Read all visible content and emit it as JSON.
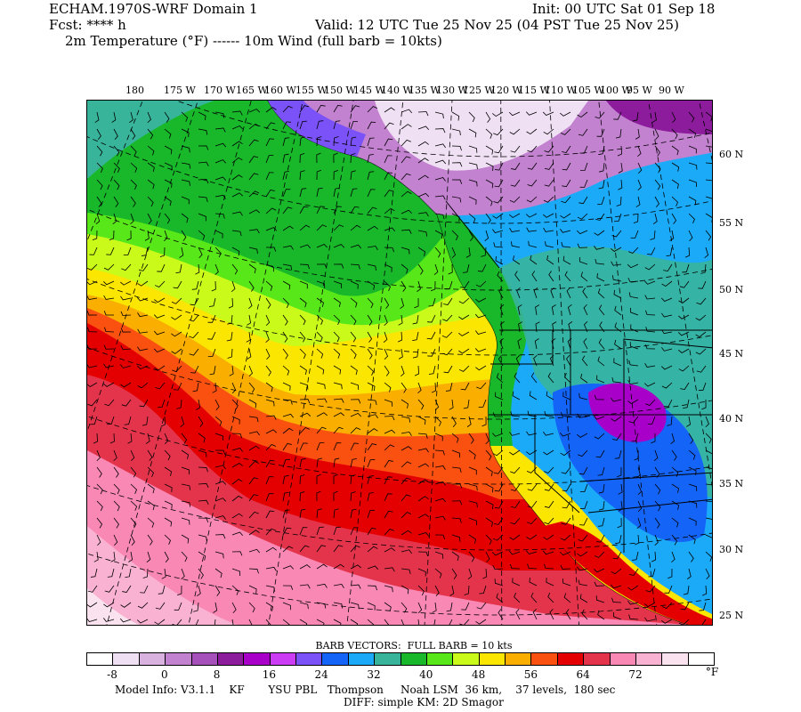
{
  "header": {
    "title": "ECHAM.1970S-WRF Domain 1",
    "init": "Init: 00 UTC Sat 01 Sep 18",
    "fcst": "Fcst: **** h",
    "valid": "Valid: 12 UTC Tue 25 Nov 25 (04 PST Tue 25 Nov 25)",
    "fields": "2m Temperature (°F) ------ 10m Wind (full barb = 10kts)"
  },
  "map": {
    "lon_labels": [
      "180",
      "175 W",
      "170 W",
      "165 W",
      "160 W",
      "155 W",
      "150 W",
      "145 W",
      "140 W",
      "135 W",
      "130 W",
      "125 W",
      "120 W",
      "115 W",
      "110 W",
      "105 W",
      "100 W",
      "95 W",
      "90 W"
    ],
    "lat_labels": [
      "60 N",
      "55 N",
      "50 N",
      "45 N",
      "40 N",
      "35 N",
      "30 N",
      "25 N"
    ]
  },
  "legend": {
    "barb_title": "BARB VECTORS:  FULL BARB = 10 kts",
    "colors": [
      "#ffffff",
      "#f0e0f4",
      "#dab2e0",
      "#c282d0",
      "#a650bc",
      "#8c1c9c",
      "#a800c8",
      "#cc3cf4",
      "#7a52f8",
      "#1464f8",
      "#1aaaf8",
      "#38b49a",
      "#18b82a",
      "#58e81a",
      "#cafa1a",
      "#fae600",
      "#faae00",
      "#fa5010",
      "#e40000",
      "#e4344c",
      "#fa88b4",
      "#fab2d2",
      "#fae2ee",
      "#ffffff"
    ],
    "tick_labels": [
      "-8",
      "0",
      "8",
      "16",
      "24",
      "32",
      "40",
      "48",
      "56",
      "64",
      "72"
    ],
    "unit": "°F"
  },
  "footer": {
    "model_info": "Model Info: V3.1.1    KF       YSU PBL   Thompson     Noah LSM  36 km,    37 levels,  180 sec",
    "diff": "DIFF: simple KM: 2D Smagor"
  }
}
